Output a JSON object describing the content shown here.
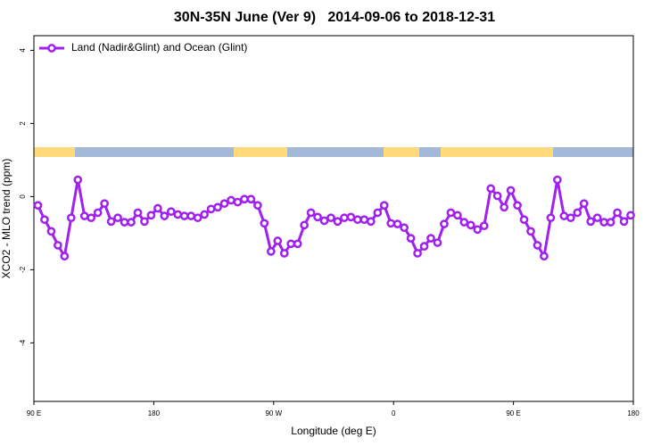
{
  "chart_data": {
    "type": "line",
    "title": "30N-35N June (Ver 9)   2014-09-06 to 2018-12-31",
    "x_label": "Longitude (deg E)",
    "y_label": "XCO2 - MLO trend (ppm)",
    "xlim": [
      90,
      540
    ],
    "ylim": [
      -5.6,
      4.4
    ],
    "xticks": [
      {
        "value": 90,
        "label": "90 E"
      },
      {
        "value": 180,
        "label": "180"
      },
      {
        "value": 270,
        "label": "90 W"
      },
      {
        "value": 360,
        "label": "0"
      },
      {
        "value": 450,
        "label": "90 E"
      },
      {
        "value": 540,
        "label": "180"
      }
    ],
    "yticks": [
      4,
      2,
      0,
      -2,
      -4
    ],
    "legend": "top-left",
    "x": [
      93,
      98,
      103,
      108,
      113,
      118,
      123,
      128,
      133,
      138,
      143,
      148,
      153,
      158,
      163,
      168,
      173,
      178,
      183,
      188,
      193,
      198,
      203,
      208,
      213,
      218,
      223,
      228,
      233,
      238,
      243,
      248,
      253,
      258,
      263,
      268,
      273,
      278,
      283,
      288,
      293,
      298,
      303,
      308,
      313,
      318,
      323,
      328,
      333,
      338,
      343,
      348,
      353,
      358,
      363,
      368,
      373,
      378,
      383,
      388,
      393,
      398,
      403,
      408,
      413,
      418,
      423,
      428,
      433,
      438,
      443,
      448,
      453,
      458,
      463,
      468,
      473,
      478,
      483,
      488,
      493,
      498,
      503,
      508,
      513,
      518,
      523,
      528,
      533,
      538
    ],
    "series": [
      {
        "name": "Land (Nadir&Glint) and Ocean (Glint)",
        "color": "#a020f0",
        "values": [
          -0.24,
          -0.63,
          -0.95,
          -1.33,
          -1.63,
          -0.58,
          0.46,
          -0.53,
          -0.58,
          -0.44,
          -0.19,
          -0.68,
          -0.58,
          -0.7,
          -0.7,
          -0.44,
          -0.68,
          -0.51,
          -0.32,
          -0.53,
          -0.41,
          -0.49,
          -0.53,
          -0.53,
          -0.58,
          -0.49,
          -0.34,
          -0.29,
          -0.19,
          -0.1,
          -0.15,
          -0.07,
          -0.07,
          -0.24,
          -0.73,
          -1.5,
          -1.21,
          -1.55,
          -1.29,
          -1.29,
          -0.78,
          -0.44,
          -0.56,
          -0.66,
          -0.58,
          -0.68,
          -0.58,
          -0.56,
          -0.63,
          -0.63,
          -0.68,
          -0.44,
          -0.24,
          -0.73,
          -0.75,
          -0.85,
          -1.14,
          -1.55,
          -1.36,
          -1.14,
          -1.26,
          -0.75,
          -0.44,
          -0.51,
          -0.7,
          -0.78,
          -0.9,
          -0.8,
          0.22,
          0.02,
          -0.29,
          0.17,
          -0.24,
          -0.63,
          -0.95,
          -1.33,
          -1.63,
          -0.58,
          0.46,
          -0.53,
          -0.58,
          -0.44,
          -0.19,
          -0.68,
          -0.58,
          -0.7,
          -0.7,
          -0.44,
          -0.68,
          -0.51
        ]
      }
    ]
  }
}
